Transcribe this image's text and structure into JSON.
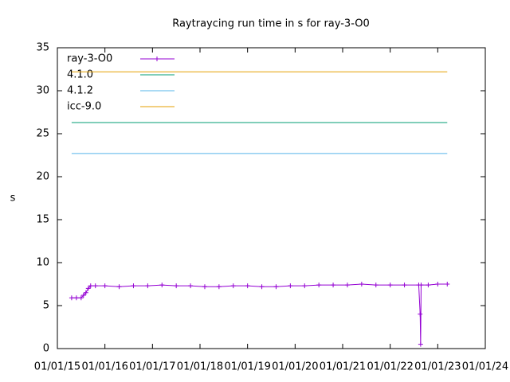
{
  "chart_data": {
    "type": "line",
    "title": "Raytraycing run time in s for ray-3-O0",
    "y_label": "s",
    "xlim": [
      2015,
      2024
    ],
    "xticks": [
      {
        "value": 2015,
        "label": "01/01/15"
      },
      {
        "value": 2016,
        "label": "01/01/16"
      },
      {
        "value": 2017,
        "label": "01/01/17"
      },
      {
        "value": 2018,
        "label": "01/01/18"
      },
      {
        "value": 2019,
        "label": "01/01/19"
      },
      {
        "value": 2020,
        "label": "01/01/20"
      },
      {
        "value": 2021,
        "label": "01/01/21"
      },
      {
        "value": 2022,
        "label": "01/01/22"
      },
      {
        "value": 2023,
        "label": "01/01/23"
      },
      {
        "value": 2024,
        "label": "01/01/24"
      }
    ],
    "ylim": [
      0,
      35
    ],
    "yticks": [
      0,
      5,
      10,
      15,
      20,
      25,
      30,
      35
    ],
    "legend": "top-left",
    "series": [
      {
        "name": "ray-3-O0",
        "color": "#9400d3",
        "x": [
          2015.3,
          2015.4,
          2015.5,
          2015.55,
          2015.6,
          2015.65,
          2015.7,
          2015.8,
          2016.0,
          2016.3,
          2016.6,
          2016.9,
          2017.2,
          2017.5,
          2017.8,
          2018.1,
          2018.4,
          2018.7,
          2019.0,
          2019.3,
          2019.6,
          2019.9,
          2020.2,
          2020.5,
          2020.8,
          2021.1,
          2021.4,
          2021.7,
          2022.0,
          2022.3,
          2022.6,
          2022.63,
          2022.64,
          2022.65,
          2022.8,
          2023.0,
          2023.2
        ],
        "values": [
          5.9,
          5.9,
          5.9,
          6.2,
          6.5,
          7.0,
          7.3,
          7.3,
          7.3,
          7.2,
          7.3,
          7.3,
          7.4,
          7.3,
          7.3,
          7.2,
          7.2,
          7.3,
          7.3,
          7.2,
          7.2,
          7.3,
          7.3,
          7.4,
          7.4,
          7.4,
          7.5,
          7.4,
          7.4,
          7.4,
          7.4,
          4.0,
          0.5,
          7.4,
          7.4,
          7.5,
          7.5
        ]
      },
      {
        "name": "4.1.0",
        "color": "#009e73",
        "x": [
          2015.3,
          2023.2
        ],
        "values": [
          26.3,
          26.3
        ]
      },
      {
        "name": "4.1.2",
        "color": "#56b4e9",
        "x": [
          2015.3,
          2023.2
        ],
        "values": [
          22.7,
          22.7
        ]
      },
      {
        "name": "icc-9.0",
        "color": "#e69f00",
        "x": [
          2015.3,
          2023.2
        ],
        "values": [
          32.2,
          32.2
        ]
      }
    ]
  }
}
